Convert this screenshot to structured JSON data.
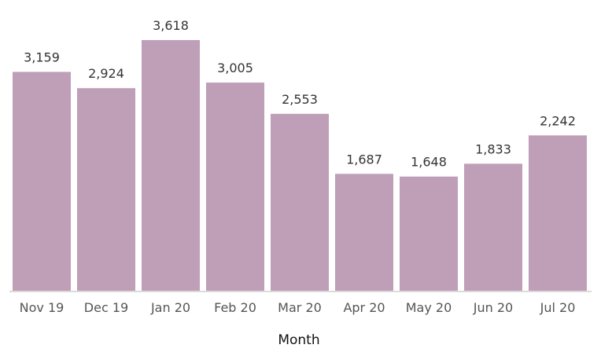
{
  "chart_data": {
    "type": "bar",
    "categories": [
      "Nov 19",
      "Dec 19",
      "Jan 20",
      "Feb 20",
      "Mar 20",
      "Apr 20",
      "May 20",
      "Jun 20",
      "Jul 20"
    ],
    "values": [
      3159,
      2924,
      3618,
      3005,
      2553,
      1687,
      1648,
      1833,
      2242
    ],
    "value_labels": [
      "3,159",
      "2,924",
      "3,618",
      "3,005",
      "2,553",
      "1,687",
      "1,648",
      "1,833",
      "2,242"
    ],
    "xlabel": "Month",
    "ylim": [
      0,
      3618
    ],
    "grid": false,
    "bar_color": "#bf9fb7"
  }
}
